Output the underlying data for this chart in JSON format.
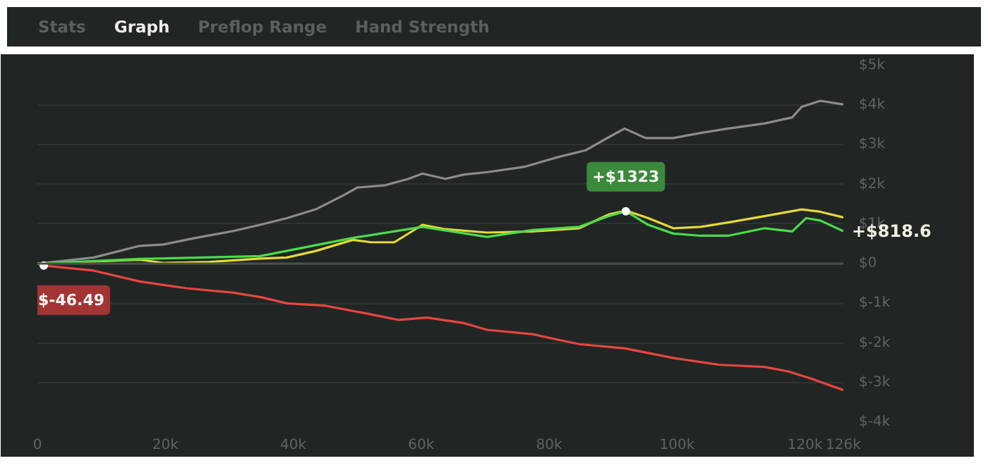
{
  "chart_data": {
    "type": "line",
    "xlim": [
      0,
      126000
    ],
    "ylim": [
      -4000,
      5000
    ],
    "xticks": [
      0,
      {
        "value": 20000,
        "label": "20k"
      },
      {
        "value": 40000,
        "label": "40k"
      },
      {
        "value": 60000,
        "label": "60k"
      },
      {
        "value": 80000,
        "label": "80k"
      },
      {
        "value": 100000,
        "label": "100k"
      },
      {
        "value": 120000,
        "label": "120k"
      },
      {
        "value": 126000,
        "label": "126k"
      }
    ],
    "yticks": [
      {
        "value": -4000,
        "label": "$-4k"
      },
      {
        "value": -3000,
        "label": "$-3k"
      },
      {
        "value": -2000,
        "label": "$-2k"
      },
      {
        "value": -1000,
        "label": "$-1k"
      },
      {
        "value": 0,
        "label": "$0"
      },
      {
        "value": 1000,
        "label": "$1k"
      },
      {
        "value": 2000,
        "label": "$2k"
      },
      {
        "value": 3000,
        "label": "$3k"
      },
      {
        "value": 4000,
        "label": "$4k"
      },
      {
        "value": 5000,
        "label": "$5k"
      }
    ],
    "grid": "y",
    "marker": "none",
    "line_style": "solid",
    "ref_lines": [
      {
        "axis": "y",
        "value": 0,
        "color": "#4a4f4d"
      }
    ],
    "series": [
      {
        "color": "#8c8c8c",
        "x": [
          0,
          8800,
          16000,
          19700,
          24700,
          30500,
          34800,
          39000,
          43500,
          47900,
          50000,
          54400,
          58000,
          60200,
          63800,
          66700,
          70300,
          76000,
          81400,
          85700,
          89300,
          91800,
          95100,
          99400,
          103700,
          108000,
          113700,
          118000,
          119500,
          122400,
          126000
        ],
        "values": [
          0,
          155,
          450,
          485,
          650,
          820,
          980,
          1150,
          1370,
          1730,
          1920,
          1980,
          2140,
          2275,
          2140,
          2250,
          2310,
          2440,
          2690,
          2860,
          3190,
          3410,
          3170,
          3170,
          3300,
          3410,
          3540,
          3690,
          3960,
          4110,
          4020
        ]
      },
      {
        "color": "#e8453f",
        "x": [
          0,
          1000,
          8800,
          16000,
          23300,
          30500,
          34800,
          39000,
          45000,
          52200,
          56500,
          60900,
          66700,
          70300,
          77400,
          84700,
          91900,
          99400,
          106500,
          113700,
          117400,
          121000,
          126000
        ],
        "values": [
          0,
          -50,
          -175,
          -450,
          -620,
          -730,
          -840,
          -1000,
          -1060,
          -1280,
          -1420,
          -1360,
          -1500,
          -1670,
          -1780,
          -2030,
          -2140,
          -2380,
          -2550,
          -2605,
          -2720,
          -2900,
          -3190
        ]
      },
      {
        "color": "#e6d83a",
        "x": [
          0,
          16000,
          19700,
          26900,
          34800,
          39000,
          43500,
          49300,
          52200,
          55800,
          60200,
          63800,
          70300,
          77400,
          84700,
          89300,
          92000,
          95500,
          99400,
          103700,
          108000,
          113700,
          119500,
          122400,
          126000
        ],
        "values": [
          0,
          100,
          20,
          45,
          130,
          155,
          320,
          600,
          540,
          540,
          980,
          870,
          785,
          815,
          895,
          1240,
          1340,
          1150,
          895,
          930,
          1040,
          1200,
          1370,
          1310,
          1170
        ]
      },
      {
        "color": "#4cdb4a",
        "x": [
          0,
          16000,
          34800,
          49300,
          60200,
          70300,
          77400,
          84700,
          89300,
          92000,
          95500,
          99400,
          103700,
          108000,
          113700,
          118000,
          120200,
          122400,
          126000
        ],
        "values": [
          0,
          120,
          190,
          650,
          930,
          675,
          850,
          930,
          1200,
          1323,
          980,
          760,
          705,
          705,
          895,
          815,
          1150,
          1090,
          818.6
        ]
      }
    ],
    "annotations": [
      "Stats",
      "Graph",
      "Preflop Range",
      "Hand Strength",
      {
        "text": "$-46.49",
        "x": 1000,
        "y": -46.49
      },
      {
        "text": "+$1323",
        "x": 92000,
        "y": 1323
      },
      {
        "text": "+$818.6",
        "x": 126000,
        "y": 818.6
      }
    ]
  }
}
